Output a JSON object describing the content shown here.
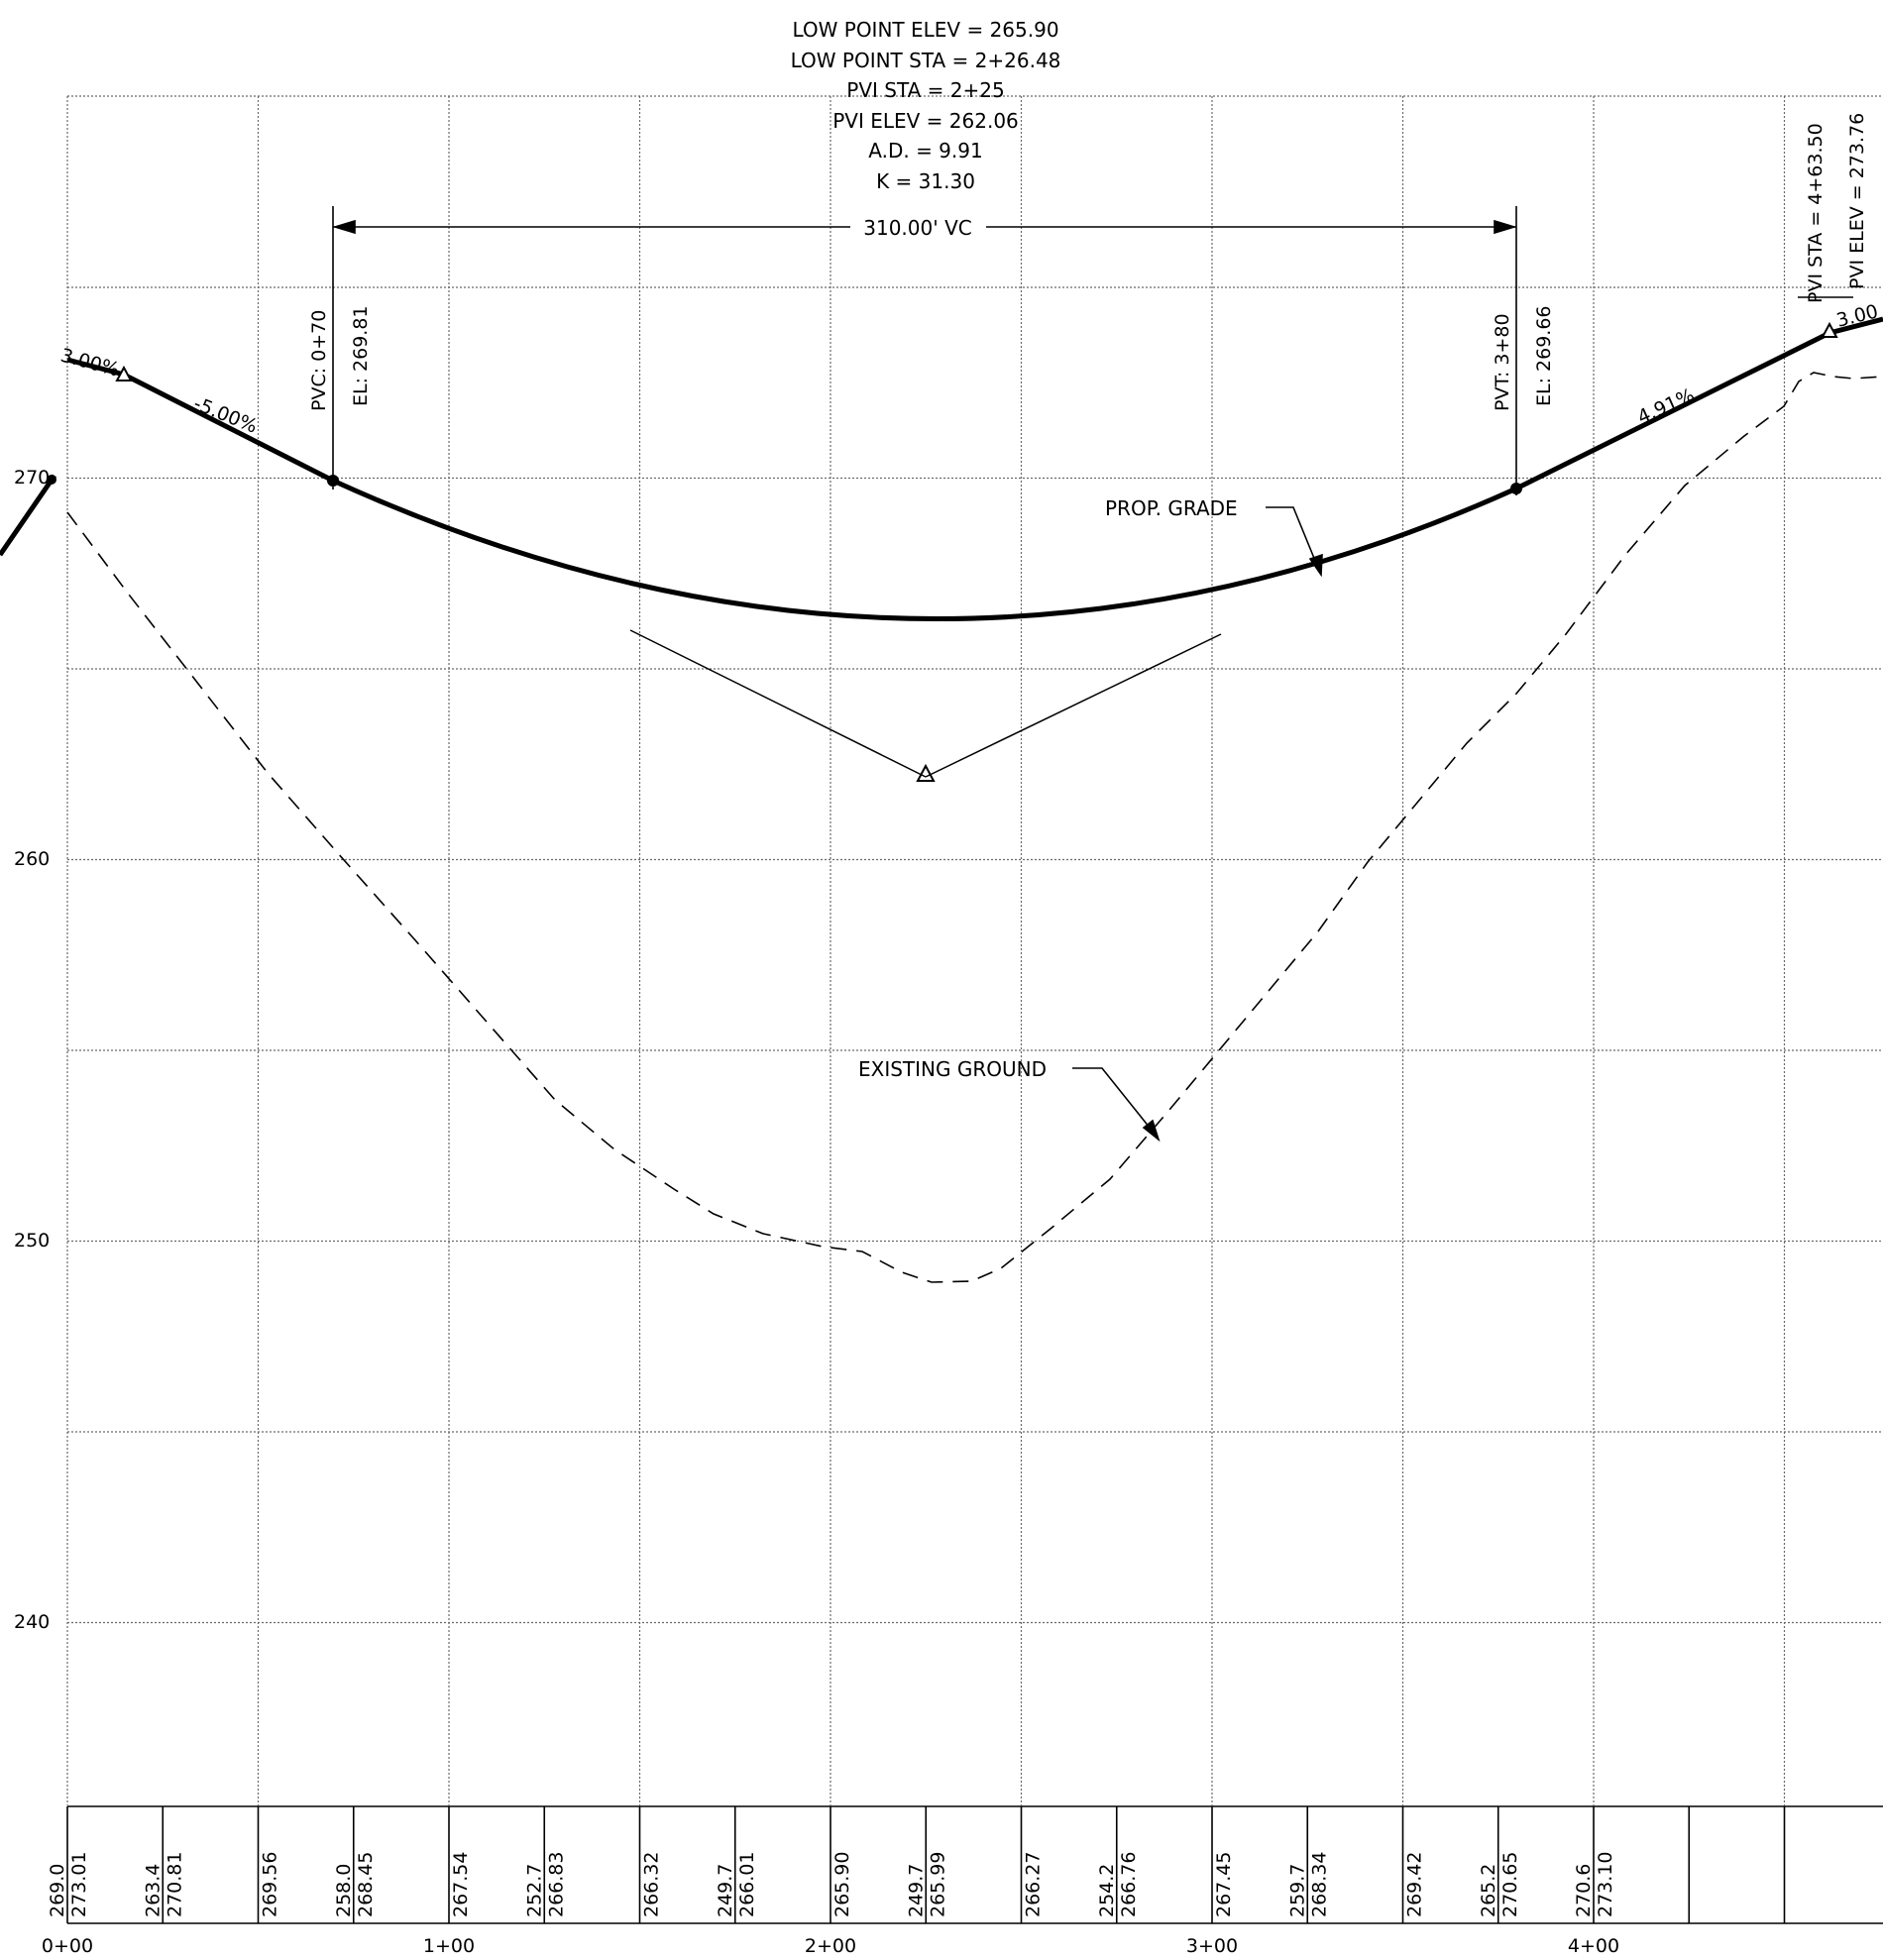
{
  "curve_info": {
    "low_point_elev": "LOW POINT ELEV = 265.90",
    "low_point_sta": "LOW POINT STA = 2+26.48",
    "pvi_sta": "PVI STA = 2+25",
    "pvi_elev": "PVI ELEV = 262.06",
    "ad": "A.D. = 9.91",
    "k": "K = 31.30"
  },
  "vc_length": "310.00' VC",
  "pvc": {
    "sta": "PVC: 0+70",
    "el": "EL: 269.81"
  },
  "pvt": {
    "sta": "PVT: 3+80",
    "el": "EL: 269.66"
  },
  "right_pvi": {
    "sta": "PVI STA = 4+63.50",
    "elev": "PVI ELEV = 273.76"
  },
  "grade_labels": {
    "g0": "3.00%",
    "g1": "-5.00%",
    "g2": "4.91%",
    "g3": "3.00"
  },
  "callouts": {
    "prop_grade": "PROP. GRADE",
    "existing_ground": "EXISTING GROUND"
  },
  "elev_axis": [
    "270",
    "260",
    "250",
    "240"
  ],
  "station_axis": [
    "0+00",
    "1+00",
    "2+00",
    "3+00",
    "4+00"
  ],
  "elevation_table": [
    {
      "existing": "269.0",
      "proposed": "273.01"
    },
    {
      "existing": "263.4",
      "proposed": "270.81"
    },
    {
      "existing": "",
      "proposed": "269.56"
    },
    {
      "existing": "258.0",
      "proposed": "268.45"
    },
    {
      "existing": "",
      "proposed": "267.54"
    },
    {
      "existing": "252.7",
      "proposed": "266.83"
    },
    {
      "existing": "",
      "proposed": "266.32"
    },
    {
      "existing": "249.7",
      "proposed": "266.01"
    },
    {
      "existing": "",
      "proposed": "265.90"
    },
    {
      "existing": "249.7",
      "proposed": "265.99"
    },
    {
      "existing": "",
      "proposed": "266.27"
    },
    {
      "existing": "254.2",
      "proposed": "266.76"
    },
    {
      "existing": "",
      "proposed": "267.45"
    },
    {
      "existing": "259.7",
      "proposed": "268.34"
    },
    {
      "existing": "",
      "proposed": "269.42"
    },
    {
      "existing": "265.2",
      "proposed": "270.65"
    },
    {
      "existing": "270.6",
      "proposed": "273.10"
    }
  ]
}
